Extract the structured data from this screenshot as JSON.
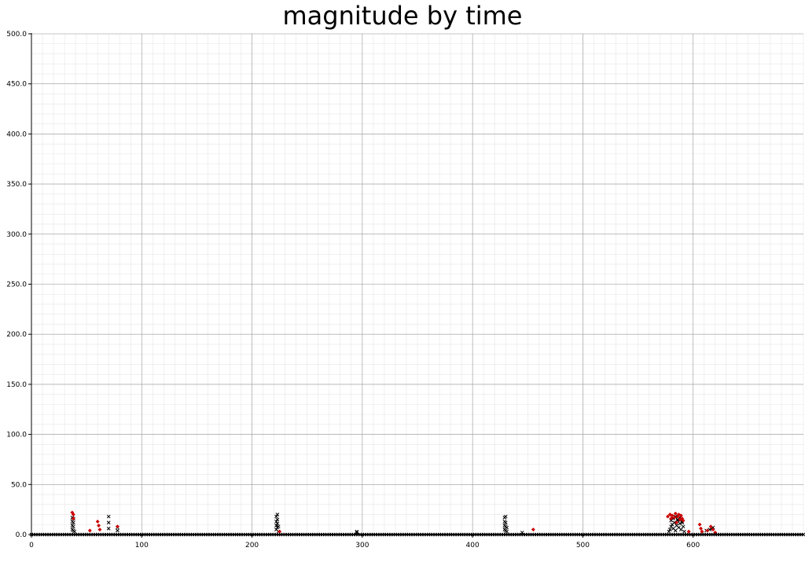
{
  "chart_data": {
    "type": "scatter",
    "title": "magnitude by time",
    "xlabel": "",
    "ylabel": "",
    "xlim": [
      0,
      700
    ],
    "ylim": [
      0,
      500
    ],
    "x_ticks": [
      0,
      100,
      200,
      300,
      400,
      500,
      600
    ],
    "x_tick_labels": [
      "0",
      "100",
      "200",
      "300",
      "400",
      "500",
      "600"
    ],
    "y_ticks": [
      0,
      50,
      100,
      150,
      200,
      250,
      300,
      350,
      400,
      450,
      500
    ],
    "y_tick_labels": [
      "0.0",
      "50.0",
      "100.0",
      "150.0",
      "200.0",
      "250.0",
      "300.0",
      "350.0",
      "400.0",
      "450.0",
      "500.0"
    ],
    "grid": true,
    "minor_grid": true,
    "series": [
      {
        "color": "#000000",
        "marker": "x",
        "x": [
          37,
          37,
          37,
          37,
          38,
          38,
          38,
          38,
          39,
          70,
          70,
          70,
          78,
          78,
          222,
          222,
          222,
          222,
          223,
          223,
          223,
          223,
          224,
          224,
          295,
          295,
          429,
          429,
          429,
          429,
          430,
          430,
          430,
          430,
          431,
          431,
          445,
          578,
          579,
          580,
          581,
          582,
          583,
          584,
          585,
          586,
          587,
          588,
          589,
          590,
          591,
          592,
          580,
          582,
          584,
          586,
          588,
          590,
          612,
          615,
          617,
          618
        ],
        "y": [
          5,
          9,
          13,
          17,
          4,
          8,
          12,
          16,
          3,
          6,
          12,
          18,
          4,
          7,
          5,
          9,
          13,
          18,
          7,
          11,
          15,
          20,
          3,
          8,
          2,
          3,
          5,
          9,
          13,
          17,
          4,
          8,
          12,
          18,
          3,
          7,
          2,
          3,
          5,
          8,
          10,
          6,
          12,
          4,
          9,
          14,
          7,
          11,
          5,
          13,
          8,
          3,
          14,
          16,
          18,
          15,
          17,
          12,
          4,
          5,
          6,
          7
        ]
      },
      {
        "color": "#cc0000",
        "marker": "diamond",
        "x": [
          37,
          38,
          38,
          53,
          60,
          61,
          62,
          78,
          225,
          455,
          577,
          579,
          580,
          581,
          583,
          584,
          585,
          586,
          587,
          588,
          589,
          590,
          591,
          596,
          606,
          607,
          608,
          613,
          616,
          618,
          620
        ],
        "y": [
          22,
          20,
          16,
          4,
          13,
          9,
          5,
          8,
          3,
          5,
          18,
          20,
          16,
          19,
          17,
          21,
          12,
          18,
          20,
          15,
          19,
          16,
          14,
          3,
          10,
          6,
          3,
          4,
          8,
          5,
          2
        ]
      },
      {
        "color": "#000000",
        "marker": "x",
        "baseline": true,
        "x_start": 0,
        "x_end": 700,
        "x_step": 2,
        "y_value": 0
      }
    ]
  }
}
